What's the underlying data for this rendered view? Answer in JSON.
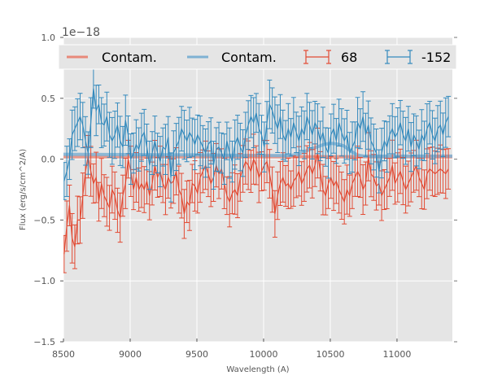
{
  "chart_data": {
    "type": "line",
    "title": "",
    "xlabel": "Wavelength (A)",
    "ylabel": "Flux (erg/s/cm^2/A)",
    "y_offset_label": "1e−18",
    "xlim": [
      8500,
      11415
    ],
    "ylim": [
      -1.5,
      1.0
    ],
    "grid": true,
    "legend_position": "top",
    "xticks": [
      8500,
      9000,
      9500,
      10000,
      10500,
      11000
    ],
    "xtick_labels": [
      "8500",
      "9000",
      "9500",
      "10000",
      "10500",
      "11000"
    ],
    "yticks": [
      -1.5,
      -1.0,
      -0.5,
      0.0,
      0.5,
      1.0
    ],
    "ytick_labels": [
      "−1.5",
      "−1.0",
      "−0.5",
      "0.0",
      "0.5",
      "1.0"
    ],
    "colors": {
      "red": "#e24a33",
      "blue": "#348abd",
      "red_contam": "#e8897a",
      "blue_contam": "#7fb1d3",
      "background": "#e5e5e5",
      "grid": "#ffffff"
    },
    "legend": [
      {
        "label": "Contam.",
        "kind": "line",
        "series": "contam_68"
      },
      {
        "label": "Contam.",
        "kind": "line",
        "series": "contam_-152"
      },
      {
        "label": "68",
        "kind": "errorbar",
        "series": "68"
      },
      {
        "label": "-152",
        "kind": "errorbar",
        "series": "-152"
      }
    ],
    "x_start": 8505,
    "x_step": 20,
    "series": [
      {
        "name": "68",
        "color": "#e24a33",
        "y": [
          -0.78,
          -0.55,
          -0.38,
          -0.65,
          -0.72,
          -0.5,
          -0.5,
          -0.3,
          -0.1,
          0.02,
          -0.1,
          -0.2,
          -0.15,
          -0.35,
          -0.2,
          -0.3,
          -0.35,
          -0.4,
          -0.25,
          -0.3,
          -0.42,
          -0.48,
          -0.3,
          -0.2,
          0.0,
          -0.1,
          -0.25,
          -0.15,
          -0.25,
          -0.2,
          -0.25,
          -0.18,
          -0.3,
          -0.2,
          -0.05,
          -0.15,
          -0.1,
          -0.2,
          -0.25,
          -0.15,
          -0.2,
          -0.18,
          -0.1,
          -0.25,
          -0.3,
          -0.45,
          -0.35,
          -0.38,
          -0.2,
          -0.22,
          -0.28,
          -0.15,
          -0.1,
          -0.05,
          -0.12,
          -0.2,
          -0.15,
          -0.05,
          -0.12,
          -0.08,
          -0.2,
          -0.3,
          -0.35,
          -0.28,
          -0.25,
          -0.3,
          -0.15,
          -0.08,
          -0.02,
          -0.05,
          -0.1,
          0.0,
          -0.05,
          -0.15,
          -0.1,
          -0.05,
          -0.02,
          -0.12,
          -0.25,
          -0.45,
          -0.3,
          -0.2,
          -0.15,
          -0.22,
          -0.2,
          -0.25,
          -0.18,
          -0.15,
          -0.1,
          -0.2,
          -0.15,
          -0.08,
          -0.05,
          -0.12,
          -0.05,
          0.05,
          -0.1,
          -0.25,
          -0.3,
          -0.2,
          -0.15,
          -0.22,
          -0.18,
          -0.25,
          -0.3,
          -0.35,
          -0.25,
          -0.3,
          -0.2,
          -0.15,
          -0.1,
          -0.15,
          -0.25,
          -0.2,
          0.02,
          -0.12,
          -0.15,
          -0.22,
          -0.2,
          -0.3,
          -0.25,
          -0.2,
          -0.15,
          -0.05,
          -0.2,
          -0.15,
          -0.1,
          -0.18,
          -0.25,
          -0.2,
          -0.15,
          -0.1,
          -0.05,
          -0.15,
          -0.2,
          -0.25,
          -0.12,
          -0.08,
          -0.1,
          -0.12,
          -0.1,
          -0.08,
          -0.1,
          -0.12,
          -0.08
        ],
        "err": 0.18
      },
      {
        "name": "-152",
        "color": "#348abd",
        "y": [
          -0.18,
          -0.1,
          0.0,
          0.2,
          0.25,
          0.3,
          0.35,
          0.28,
          0.15,
          0.05,
          0.3,
          0.58,
          0.4,
          0.45,
          0.3,
          0.28,
          0.35,
          0.2,
          0.15,
          0.2,
          0.28,
          0.15,
          0.1,
          0.32,
          0.2,
          0.0,
          0.05,
          0.12,
          0.08,
          0.18,
          0.22,
          0.1,
          -0.05,
          0.05,
          0.15,
          0.05,
          -0.02,
          0.1,
          0.08,
          0.18,
          -0.15,
          0.05,
          0.1,
          0.15,
          0.25,
          0.2,
          0.15,
          0.22,
          0.18,
          0.12,
          0.2,
          0.15,
          0.1,
          0.05,
          0.12,
          0.15,
          -0.05,
          0.08,
          0.1,
          0.05,
          0.0,
          0.15,
          0.05,
          -0.02,
          0.12,
          0.18,
          0.1,
          0.05,
          0.2,
          0.28,
          0.35,
          0.3,
          0.38,
          0.25,
          0.2,
          0.1,
          0.3,
          0.45,
          0.4,
          0.32,
          0.25,
          0.35,
          0.2,
          0.15,
          0.25,
          0.18,
          0.3,
          0.22,
          0.15,
          0.25,
          0.2,
          0.35,
          0.28,
          0.2,
          0.3,
          0.25,
          0.15,
          0.22,
          0.1,
          0.05,
          0.2,
          0.25,
          0.15,
          0.3,
          0.22,
          0.15,
          0.2,
          0.05,
          0.1,
          0.15,
          0.3,
          0.25,
          0.35,
          0.2,
          0.28,
          0.15,
          0.1,
          0.05,
          -0.1,
          0.05,
          0.15,
          0.1,
          0.2,
          0.25,
          0.18,
          0.22,
          0.3,
          0.2,
          0.15,
          0.25,
          0.1,
          0.2,
          0.15,
          0.08,
          0.2,
          0.15,
          0.25,
          0.3,
          0.2,
          0.15,
          0.25,
          0.28,
          0.2,
          0.3,
          0.35
        ],
        "err": 0.18
      },
      {
        "name": "contam_68",
        "color": "#e8897a",
        "x": [
          8500,
          11415
        ],
        "y": [
          0.02,
          0.02
        ]
      },
      {
        "name": "contam_-152",
        "color": "#7fb1d3",
        "x": [
          8500,
          9500,
          10000,
          10200,
          10260,
          10300,
          10350,
          10400,
          10450,
          10500,
          10550,
          10600,
          10650,
          10700,
          10750,
          10800,
          11000,
          11415
        ],
        "y": [
          0.04,
          0.035,
          0.03,
          0.03,
          0.04,
          0.06,
          0.08,
          0.1,
          0.12,
          0.13,
          0.125,
          0.11,
          0.07,
          0.035,
          0.025,
          0.025,
          0.025,
          0.025
        ]
      }
    ]
  }
}
